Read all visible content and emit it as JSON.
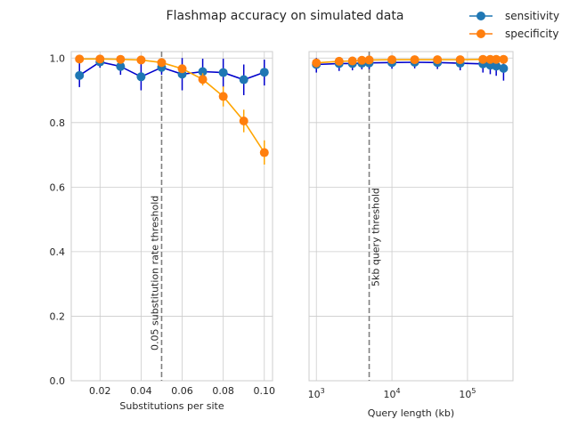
{
  "figure": {
    "title": "Flashmap accuracy on simulated data",
    "legend": [
      {
        "label": "sensitivity",
        "color": "#1f77b4"
      },
      {
        "label": "specificity",
        "color": "#ff7f0e"
      }
    ],
    "legend_position": "top-right"
  },
  "chart_data": [
    {
      "type": "line",
      "xlabel": "Substitutions per site",
      "ylabel": "",
      "xlim": [
        0.006,
        0.104
      ],
      "ylim": [
        0,
        1.02
      ],
      "xscale": "linear",
      "grid": true,
      "x_ticks": [
        0.02,
        0.04,
        0.06,
        0.08,
        0.1
      ],
      "x_tick_labels": [
        "0.02",
        "0.04",
        "0.06",
        "0.08",
        "0.10"
      ],
      "y_ticks": [
        0.0,
        0.2,
        0.4,
        0.6,
        0.8,
        1.0
      ],
      "y_tick_labels": [
        "0.0",
        "0.2",
        "0.4",
        "0.6",
        "0.8",
        "1.0"
      ],
      "x": [
        0.01,
        0.02,
        0.03,
        0.04,
        0.05,
        0.06,
        0.07,
        0.08,
        0.09,
        0.1
      ],
      "series": [
        {
          "name": "sensitivity",
          "color": "#1f77b4",
          "line_color": "#0000cc",
          "values": [
            0.946,
            0.988,
            0.974,
            0.942,
            0.971,
            0.95,
            0.958,
            0.955,
            0.933,
            0.956
          ],
          "err_low": [
            0.91,
            0.97,
            0.948,
            0.9,
            0.948,
            0.9,
            0.92,
            0.91,
            0.885,
            0.915
          ],
          "err_high": [
            0.985,
            1.0,
            0.995,
            0.985,
            0.995,
            1.0,
            0.998,
            0.998,
            0.98,
            0.995
          ]
        },
        {
          "name": "specificity",
          "color": "#ff7f0e",
          "line_color": "#ffa500",
          "values": [
            0.997,
            0.997,
            0.996,
            0.994,
            0.986,
            0.967,
            0.934,
            0.881,
            0.805,
            0.707
          ],
          "err_low": [
            0.992,
            0.992,
            0.99,
            0.988,
            0.978,
            0.955,
            0.915,
            0.85,
            0.77,
            0.67
          ],
          "err_high": [
            1.0,
            1.0,
            1.0,
            1.0,
            0.994,
            0.979,
            0.953,
            0.912,
            0.84,
            0.745
          ]
        }
      ],
      "vline": {
        "x": 0.05,
        "label": "0.05 substitution rate threshold"
      }
    },
    {
      "type": "line",
      "xlabel": "Query length (kb)",
      "ylabel": "",
      "xlim": [
        800,
        400000
      ],
      "ylim": [
        0,
        1.02
      ],
      "xscale": "log",
      "grid": true,
      "x_ticks": [
        1000,
        10000,
        100000
      ],
      "x_tick_labels": [
        [
          "10",
          "3"
        ],
        [
          "10",
          "4"
        ],
        [
          "10",
          "5"
        ]
      ],
      "y_ticks": [
        0.0,
        0.2,
        0.4,
        0.6,
        0.8,
        1.0
      ],
      "y_tick_labels": [],
      "x": [
        1000,
        2000,
        3000,
        4000,
        5000,
        10000,
        20000,
        40000,
        80000,
        160000,
        200000,
        240000,
        300000
      ],
      "series": [
        {
          "name": "sensitivity",
          "color": "#1f77b4",
          "line_color": "#0000cc",
          "values": [
            0.98,
            0.983,
            0.983,
            0.984,
            0.985,
            0.986,
            0.987,
            0.986,
            0.984,
            0.982,
            0.978,
            0.975,
            0.968
          ],
          "err_low": [
            0.955,
            0.96,
            0.962,
            0.965,
            0.966,
            0.967,
            0.968,
            0.966,
            0.962,
            0.955,
            0.95,
            0.945,
            0.93
          ],
          "err_high": [
            1.0,
            1.0,
            1.0,
            1.0,
            1.0,
            1.0,
            1.0,
            1.0,
            1.0,
            1.0,
            1.0,
            1.0,
            1.0
          ]
        },
        {
          "name": "specificity",
          "color": "#ff7f0e",
          "line_color": "#ffa500",
          "values": [
            0.985,
            0.99,
            0.991,
            0.993,
            0.994,
            0.995,
            0.995,
            0.995,
            0.995,
            0.996,
            0.996,
            0.996,
            0.996
          ],
          "err_low": [
            0.978,
            0.985,
            0.986,
            0.988,
            0.989,
            0.99,
            0.99,
            0.99,
            0.99,
            0.991,
            0.991,
            0.991,
            0.991
          ],
          "err_high": [
            0.992,
            0.995,
            0.996,
            0.998,
            0.999,
            1.0,
            1.0,
            1.0,
            1.0,
            1.0,
            1.0,
            1.0,
            1.0
          ]
        }
      ],
      "vline": {
        "x": 5000,
        "label": "5kb query threshold"
      }
    }
  ]
}
